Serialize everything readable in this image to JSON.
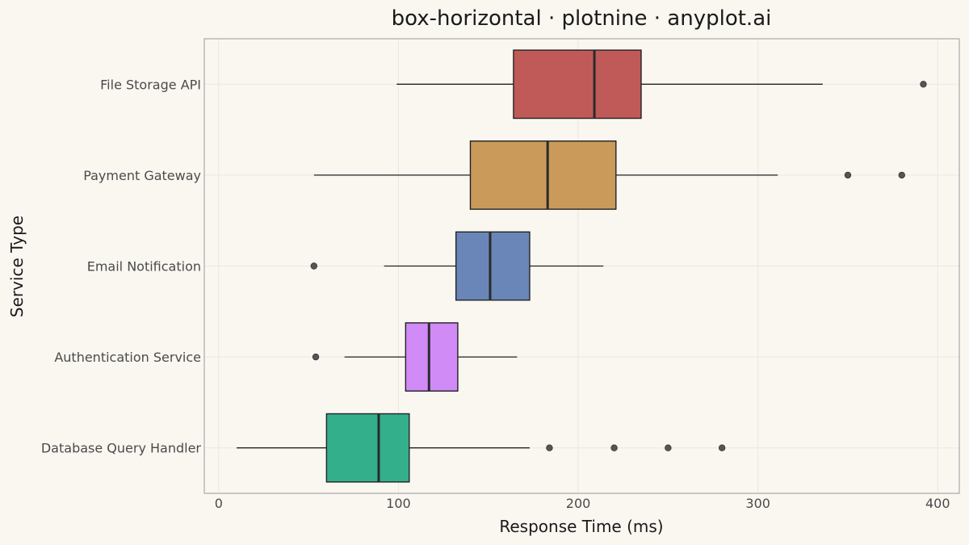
{
  "chart_data": {
    "type": "box-horizontal",
    "title": "box-horizontal · plotnine · anyplot.ai",
    "xlabel": "Response Time (ms)",
    "ylabel": "Service Type",
    "xlim": [
      -8,
      412
    ],
    "xticks": [
      0,
      100,
      200,
      300,
      400
    ],
    "grid": true,
    "categories": [
      "File Storage API",
      "Payment Gateway",
      "Email Notification",
      "Authentication Service",
      "Database Query Handler"
    ],
    "series": [
      {
        "category": "File Storage API",
        "color": "#C05A59",
        "whisker_low": 99,
        "q1": 164,
        "median": 209,
        "q3": 235,
        "whisker_high": 336,
        "outliers": [
          392
        ]
      },
      {
        "category": "Payment Gateway",
        "color": "#C99A5A",
        "whisker_low": 53,
        "q1": 140,
        "median": 183,
        "q3": 221,
        "whisker_high": 311,
        "outliers": [
          350,
          380
        ]
      },
      {
        "category": "Email Notification",
        "color": "#6A86B8",
        "whisker_low": 92,
        "q1": 132,
        "median": 151,
        "q3": 173,
        "whisker_high": 214,
        "outliers": [
          53
        ]
      },
      {
        "category": "Authentication Service",
        "color": "#D08BF7",
        "whisker_low": 70,
        "q1": 104,
        "median": 117,
        "q3": 133,
        "whisker_high": 166,
        "outliers": [
          54
        ]
      },
      {
        "category": "Database Query Handler",
        "color": "#34AF8C",
        "whisker_low": 10,
        "q1": 60,
        "median": 89,
        "q3": 106,
        "whisker_high": 173,
        "outliers": [
          184,
          220,
          250,
          280
        ]
      }
    ]
  }
}
